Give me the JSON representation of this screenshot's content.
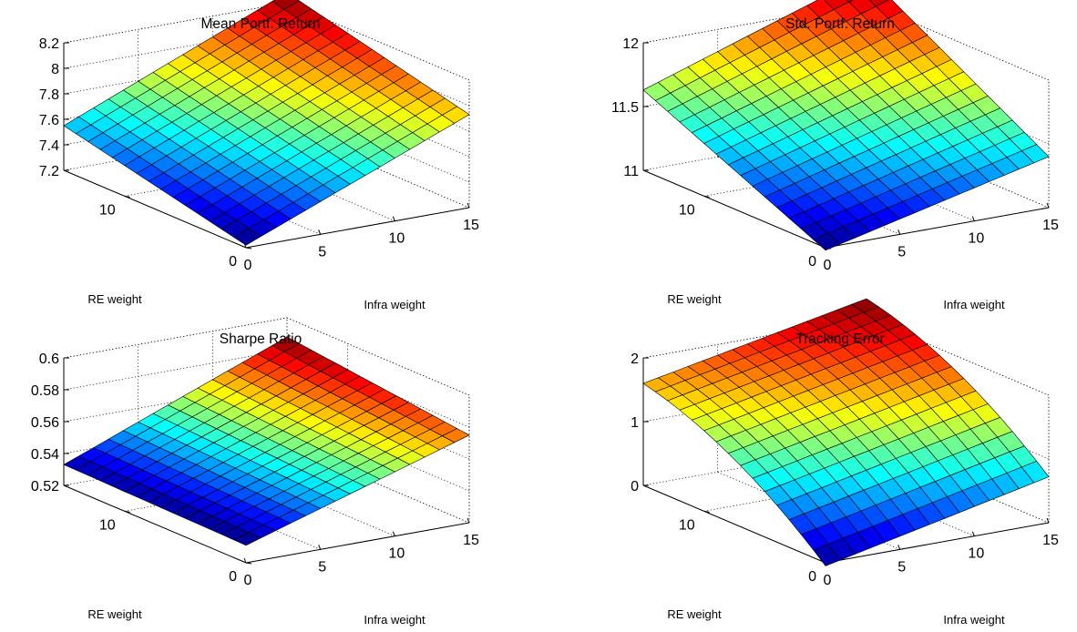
{
  "colormap": "jet",
  "chart_data": [
    {
      "type": "surface",
      "title": "Mean Portf. Return",
      "xlabel": "Infra weight",
      "ylabel": "RE weight",
      "x_ticks": [
        "0",
        "5",
        "10",
        "15"
      ],
      "y_ticks": [
        "0",
        "10"
      ],
      "z_ticks": [
        "7.2",
        "7.4",
        "7.6",
        "7.8",
        "8",
        "8.2"
      ],
      "x_range": [
        0,
        15
      ],
      "y_range": [
        0,
        15
      ],
      "zlim": [
        7.2,
        8.2
      ],
      "grid": true,
      "z_corners": {
        "x0_y0": 7.22,
        "x15_y0": 7.93,
        "x0_y15": 7.55,
        "x15_y15": 8.28
      },
      "z_curvature": 0.0
    },
    {
      "type": "surface",
      "title": "Std. Portf. Return",
      "xlabel": "Infra weight",
      "ylabel": "RE weight",
      "x_ticks": [
        "0",
        "5",
        "10",
        "15"
      ],
      "y_ticks": [
        "0",
        "10"
      ],
      "z_ticks": [
        "11",
        "11.5",
        "12"
      ],
      "x_range": [
        0,
        15
      ],
      "y_range": [
        0,
        15
      ],
      "zlim": [
        11,
        12
      ],
      "grid": true,
      "z_corners": {
        "x0_y0": 10.98,
        "x15_y0": 11.4,
        "x0_y15": 11.63,
        "x15_y15": 12.22
      },
      "z_curvature": 0.0
    },
    {
      "type": "surface",
      "title": "Sharpe Ratio",
      "xlabel": "Infra weight",
      "ylabel": "RE weight",
      "x_ticks": [
        "0",
        "5",
        "10",
        "15"
      ],
      "y_ticks": [
        "0",
        "10"
      ],
      "z_ticks": [
        "0.52",
        "0.54",
        "0.56",
        "0.58",
        "0.6"
      ],
      "x_range": [
        0,
        15
      ],
      "y_range": [
        0,
        15
      ],
      "zlim": [
        0.52,
        0.6
      ],
      "grid": true,
      "z_corners": {
        "x0_y0": 0.531,
        "x15_y0": 0.575,
        "x0_y15": 0.533,
        "x15_y15": 0.588
      },
      "z_curvature": 0.0
    },
    {
      "type": "surface",
      "title": "Tracking Error",
      "xlabel": "Infra weight",
      "ylabel": "RE weight",
      "x_ticks": [
        "0",
        "5",
        "10",
        "15"
      ],
      "y_ticks": [
        "0",
        "10"
      ],
      "z_ticks": [
        "0",
        "1",
        "2"
      ],
      "x_range": [
        0,
        15
      ],
      "y_range": [
        0,
        15
      ],
      "zlim": [
        0,
        2
      ],
      "grid": true,
      "z_corners": {
        "x0_y0": -0.05,
        "x15_y0": 0.72,
        "x0_y15": 1.6,
        "x15_y15": 2.3
      },
      "z_curvature": 0.12
    }
  ]
}
